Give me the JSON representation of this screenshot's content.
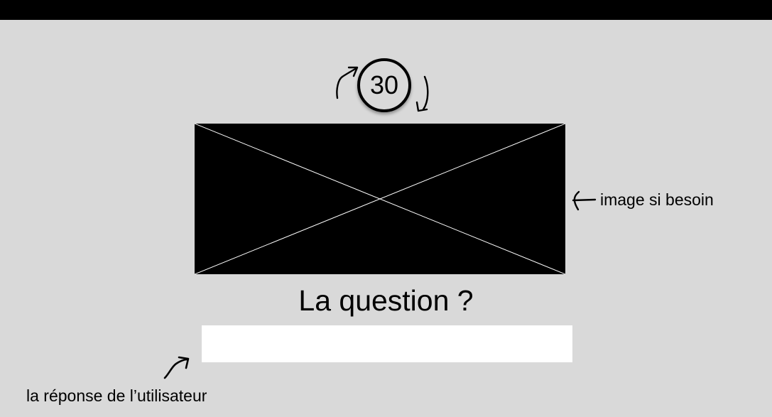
{
  "timer": {
    "value": "30",
    "icon": "refresh-arrows-icon"
  },
  "image": {
    "icon": "image-placeholder-icon",
    "annotation": "image si besoin",
    "annotation_arrow_icon": "arrow-left-icon"
  },
  "question": {
    "text": "La question ?"
  },
  "answer": {
    "value": "",
    "placeholder": "",
    "annotation": "la réponse de l’utilisateur",
    "annotation_arrow_icon": "arrow-up-right-icon"
  },
  "colors": {
    "background": "#d9d9d9",
    "topbar": "#000000",
    "placeholder_fill": "#000000",
    "input_fill": "#ffffff"
  }
}
